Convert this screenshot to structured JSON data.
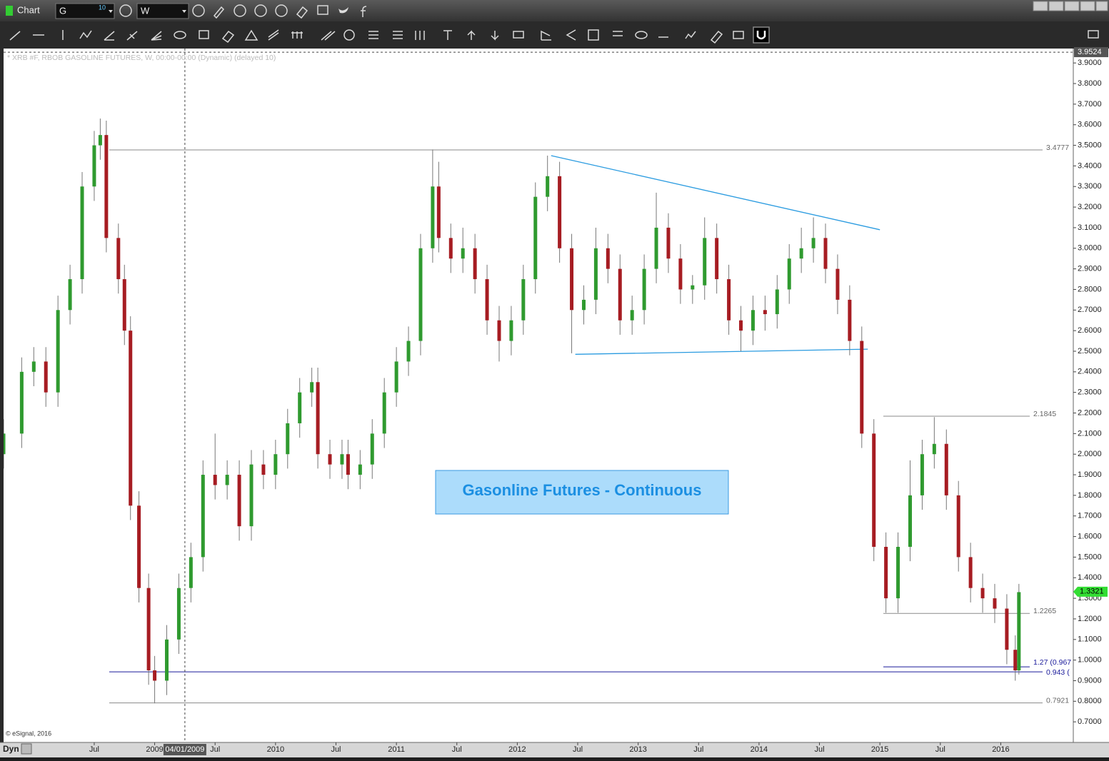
{
  "window": {
    "title": "Chart",
    "symbol": "G",
    "symbol_badge": "10",
    "interval": "W",
    "status": "Dyn"
  },
  "chart_data": {
    "type": "candlestick",
    "title": "* XRB #F, RBOB GASOLINE FUTURES, W, 00:00-00:00 (Dynamic) (delayed 10)",
    "annotation": "Gasonline Futures - Continuous",
    "copyright": "© eSignal, 2016",
    "up_color": "#2f9a2f",
    "down_color": "#a61c22",
    "grid": false,
    "xlim": [
      2007.75,
      2016.6
    ],
    "ylim": [
      0.6,
      3.97
    ],
    "xticks": [
      {
        "value": 2008.5,
        "label": "Jul"
      },
      2009,
      {
        "value": 2009.5,
        "label": "Jul"
      },
      2010,
      {
        "value": 2010.5,
        "label": "Jul"
      },
      2011,
      {
        "value": 2011.5,
        "label": "Jul"
      },
      2012,
      {
        "value": 2012.5,
        "label": "Jul"
      },
      2013,
      {
        "value": 2013.5,
        "label": "Jul"
      },
      2014,
      {
        "value": 2014.5,
        "label": "Jul"
      },
      2015,
      {
        "value": 2015.5,
        "label": "Jul"
      },
      2016
    ],
    "yticks": [
      {
        "value": 0.7,
        "label": "0.7000"
      },
      {
        "value": 0.8,
        "label": "0.8000"
      },
      {
        "value": 0.9,
        "label": "0.9000"
      },
      {
        "value": 1.0,
        "label": "1.0000"
      },
      {
        "value": 1.1,
        "label": "1.1000"
      },
      {
        "value": 1.2,
        "label": "1.2000"
      },
      {
        "value": 1.3,
        "label": "1.3000"
      },
      {
        "value": 1.4,
        "label": "1.4000"
      },
      {
        "value": 1.5,
        "label": "1.5000"
      },
      {
        "value": 1.6,
        "label": "1.6000"
      },
      {
        "value": 1.7,
        "label": "1.7000"
      },
      {
        "value": 1.8,
        "label": "1.8000"
      },
      {
        "value": 1.9,
        "label": "1.9000"
      },
      {
        "value": 2.0,
        "label": "2.0000"
      },
      {
        "value": 2.1,
        "label": "2.1000"
      },
      {
        "value": 2.2,
        "label": "2.2000"
      },
      {
        "value": 2.3,
        "label": "2.3000"
      },
      {
        "value": 2.4,
        "label": "2.4000"
      },
      {
        "value": 2.5,
        "label": "2.5000"
      },
      {
        "value": 2.6,
        "label": "2.6000"
      },
      {
        "value": 2.7,
        "label": "2.7000"
      },
      {
        "value": 2.8,
        "label": "2.8000"
      },
      {
        "value": 2.9,
        "label": "2.9000"
      },
      {
        "value": 3.0,
        "label": "3.0000"
      },
      {
        "value": 3.1,
        "label": "3.1000"
      },
      {
        "value": 3.2,
        "label": "3.2000"
      },
      {
        "value": 3.3,
        "label": "3.3000"
      },
      {
        "value": 3.4,
        "label": "3.4000"
      },
      {
        "value": 3.5,
        "label": "3.5000"
      },
      {
        "value": 3.6,
        "label": "3.6000"
      },
      {
        "value": 3.7,
        "label": "3.7000"
      },
      {
        "value": 3.8,
        "label": "3.8000"
      },
      {
        "value": 3.9,
        "label": "3.9000"
      }
    ],
    "x": [
      2007.75,
      2007.9,
      2008.0,
      2008.1,
      2008.2,
      2008.3,
      2008.4,
      2008.5,
      2008.55,
      2008.6,
      2008.7,
      2008.75,
      2008.8,
      2008.87,
      2008.95,
      2009.0,
      2009.1,
      2009.2,
      2009.3,
      2009.4,
      2009.5,
      2009.6,
      2009.7,
      2009.8,
      2009.9,
      2010.0,
      2010.1,
      2010.2,
      2010.3,
      2010.35,
      2010.45,
      2010.55,
      2010.6,
      2010.7,
      2010.8,
      2010.9,
      2011.0,
      2011.1,
      2011.2,
      2011.3,
      2011.35,
      2011.45,
      2011.55,
      2011.65,
      2011.75,
      2011.85,
      2011.95,
      2012.05,
      2012.15,
      2012.25,
      2012.35,
      2012.45,
      2012.55,
      2012.65,
      2012.75,
      2012.85,
      2012.95,
      2013.05,
      2013.15,
      2013.25,
      2013.35,
      2013.45,
      2013.55,
      2013.65,
      2013.75,
      2013.85,
      2013.95,
      2014.05,
      2014.15,
      2014.25,
      2014.35,
      2014.45,
      2014.55,
      2014.65,
      2014.75,
      2014.85,
      2014.95,
      2015.05,
      2015.15,
      2015.25,
      2015.35,
      2015.45,
      2015.55,
      2015.65,
      2015.75,
      2015.85,
      2015.95,
      2016.05,
      2016.12,
      2016.15
    ],
    "open": [
      2.0,
      2.1,
      2.4,
      2.45,
      2.3,
      2.7,
      2.85,
      3.3,
      3.5,
      3.55,
      3.05,
      2.85,
      2.6,
      1.75,
      1.35,
      0.95,
      0.9,
      1.1,
      1.35,
      1.5,
      1.9,
      1.85,
      1.9,
      1.65,
      1.95,
      1.9,
      2.0,
      2.15,
      2.3,
      2.35,
      2.0,
      1.95,
      2.0,
      1.9,
      1.95,
      2.1,
      2.3,
      2.45,
      2.55,
      3.0,
      3.3,
      3.05,
      2.95,
      3.0,
      2.85,
      2.65,
      2.55,
      2.65,
      2.85,
      3.25,
      3.35,
      3.0,
      2.7,
      2.75,
      3.0,
      2.9,
      2.65,
      2.7,
      2.9,
      3.1,
      2.95,
      2.8,
      2.82,
      3.05,
      2.85,
      2.65,
      2.6,
      2.7,
      2.68,
      2.8,
      2.95,
      3.0,
      3.05,
      2.9,
      2.75,
      2.55,
      2.1,
      1.55,
      1.3,
      1.55,
      1.8,
      2.0,
      2.05,
      1.8,
      1.5,
      1.35,
      1.3,
      1.25,
      1.05,
      0.95
    ],
    "high": [
      2.17,
      2.47,
      2.52,
      2.52,
      2.77,
      2.92,
      3.37,
      3.57,
      3.63,
      3.62,
      3.12,
      2.92,
      2.67,
      1.82,
      1.42,
      1.02,
      1.17,
      1.42,
      1.57,
      1.97,
      2.1,
      1.97,
      1.97,
      2.02,
      2.02,
      2.07,
      2.22,
      2.37,
      2.42,
      2.42,
      2.07,
      2.07,
      2.07,
      2.02,
      2.17,
      2.37,
      2.52,
      2.62,
      3.07,
      3.48,
      3.42,
      3.12,
      3.1,
      3.07,
      2.92,
      2.72,
      2.72,
      2.92,
      3.32,
      3.45,
      3.42,
      3.07,
      2.82,
      3.1,
      3.07,
      2.97,
      2.77,
      2.97,
      3.27,
      3.17,
      3.02,
      2.87,
      3.15,
      3.12,
      2.92,
      2.72,
      2.77,
      2.77,
      2.87,
      3.02,
      3.1,
      3.15,
      3.12,
      2.97,
      2.82,
      2.62,
      2.17,
      1.62,
      1.62,
      1.97,
      2.07,
      2.18,
      2.12,
      1.87,
      1.57,
      1.42,
      1.37,
      1.32,
      1.12,
      1.37
    ],
    "low": [
      1.93,
      2.03,
      2.33,
      2.23,
      2.23,
      2.63,
      2.78,
      3.23,
      3.43,
      2.98,
      2.78,
      2.53,
      1.68,
      1.28,
      0.88,
      0.79,
      0.83,
      1.03,
      1.28,
      1.43,
      1.78,
      1.78,
      1.58,
      1.58,
      1.83,
      1.83,
      1.93,
      2.08,
      2.23,
      1.93,
      1.88,
      1.88,
      1.83,
      1.83,
      1.88,
      2.03,
      2.23,
      2.38,
      2.48,
      2.93,
      2.98,
      2.88,
      2.88,
      2.78,
      2.58,
      2.45,
      2.48,
      2.58,
      2.78,
      3.18,
      2.93,
      2.49,
      2.63,
      2.68,
      2.83,
      2.58,
      2.58,
      2.63,
      2.83,
      2.88,
      2.73,
      2.73,
      2.75,
      2.78,
      2.58,
      2.5,
      2.53,
      2.6,
      2.61,
      2.73,
      2.88,
      2.93,
      2.83,
      2.68,
      2.48,
      2.03,
      1.48,
      1.23,
      1.23,
      1.48,
      1.73,
      1.93,
      1.73,
      1.43,
      1.28,
      1.23,
      1.18,
      0.98,
      0.9,
      0.93
    ],
    "close": [
      2.1,
      2.4,
      2.45,
      2.3,
      2.7,
      2.85,
      3.3,
      3.5,
      3.55,
      3.05,
      2.85,
      2.6,
      1.75,
      1.35,
      0.95,
      0.9,
      1.1,
      1.35,
      1.5,
      1.9,
      1.85,
      1.9,
      1.65,
      1.95,
      1.9,
      2.0,
      2.15,
      2.3,
      2.35,
      2.0,
      1.95,
      2.0,
      1.9,
      1.95,
      2.1,
      2.3,
      2.45,
      2.55,
      3.0,
      3.3,
      3.05,
      2.95,
      3.0,
      2.85,
      2.65,
      2.55,
      2.65,
      2.85,
      3.25,
      3.35,
      3.0,
      2.7,
      2.75,
      3.0,
      2.9,
      2.65,
      2.7,
      2.9,
      3.1,
      2.95,
      2.8,
      2.82,
      3.05,
      2.85,
      2.65,
      2.6,
      2.7,
      2.68,
      2.8,
      2.95,
      3.0,
      3.05,
      2.9,
      2.75,
      2.55,
      2.1,
      1.55,
      1.3,
      1.55,
      1.8,
      2.0,
      2.05,
      1.8,
      1.5,
      1.35,
      1.3,
      1.25,
      1.05,
      0.95,
      1.33
    ],
    "levels": [
      3.4777,
      2.1845,
      1.2265,
      {
        "value": 0.967,
        "label": "1.27 (0.967"
      },
      {
        "value": 0.943,
        "label": "0.943 ("
      },
      0.7921
    ],
    "level_colors": [
      "#8a8a8a",
      "#8a8a8a",
      "#8a8a8a",
      "#1a1a9a",
      "#1a1a9a",
      "#8a8a8a"
    ],
    "trendlines": [
      {
        "x": [
          2012.28,
          2015.0
        ],
        "y": [
          3.45,
          3.09
        ]
      },
      {
        "x": [
          2012.48,
          2014.9
        ],
        "y": [
          2.485,
          2.51
        ]
      }
    ],
    "trendline_color": "#2a9be0",
    "crosshair": {
      "x": 2009.25,
      "x_label": "04/01/2009",
      "y": 3.9524
    },
    "last": 1.3321
  }
}
